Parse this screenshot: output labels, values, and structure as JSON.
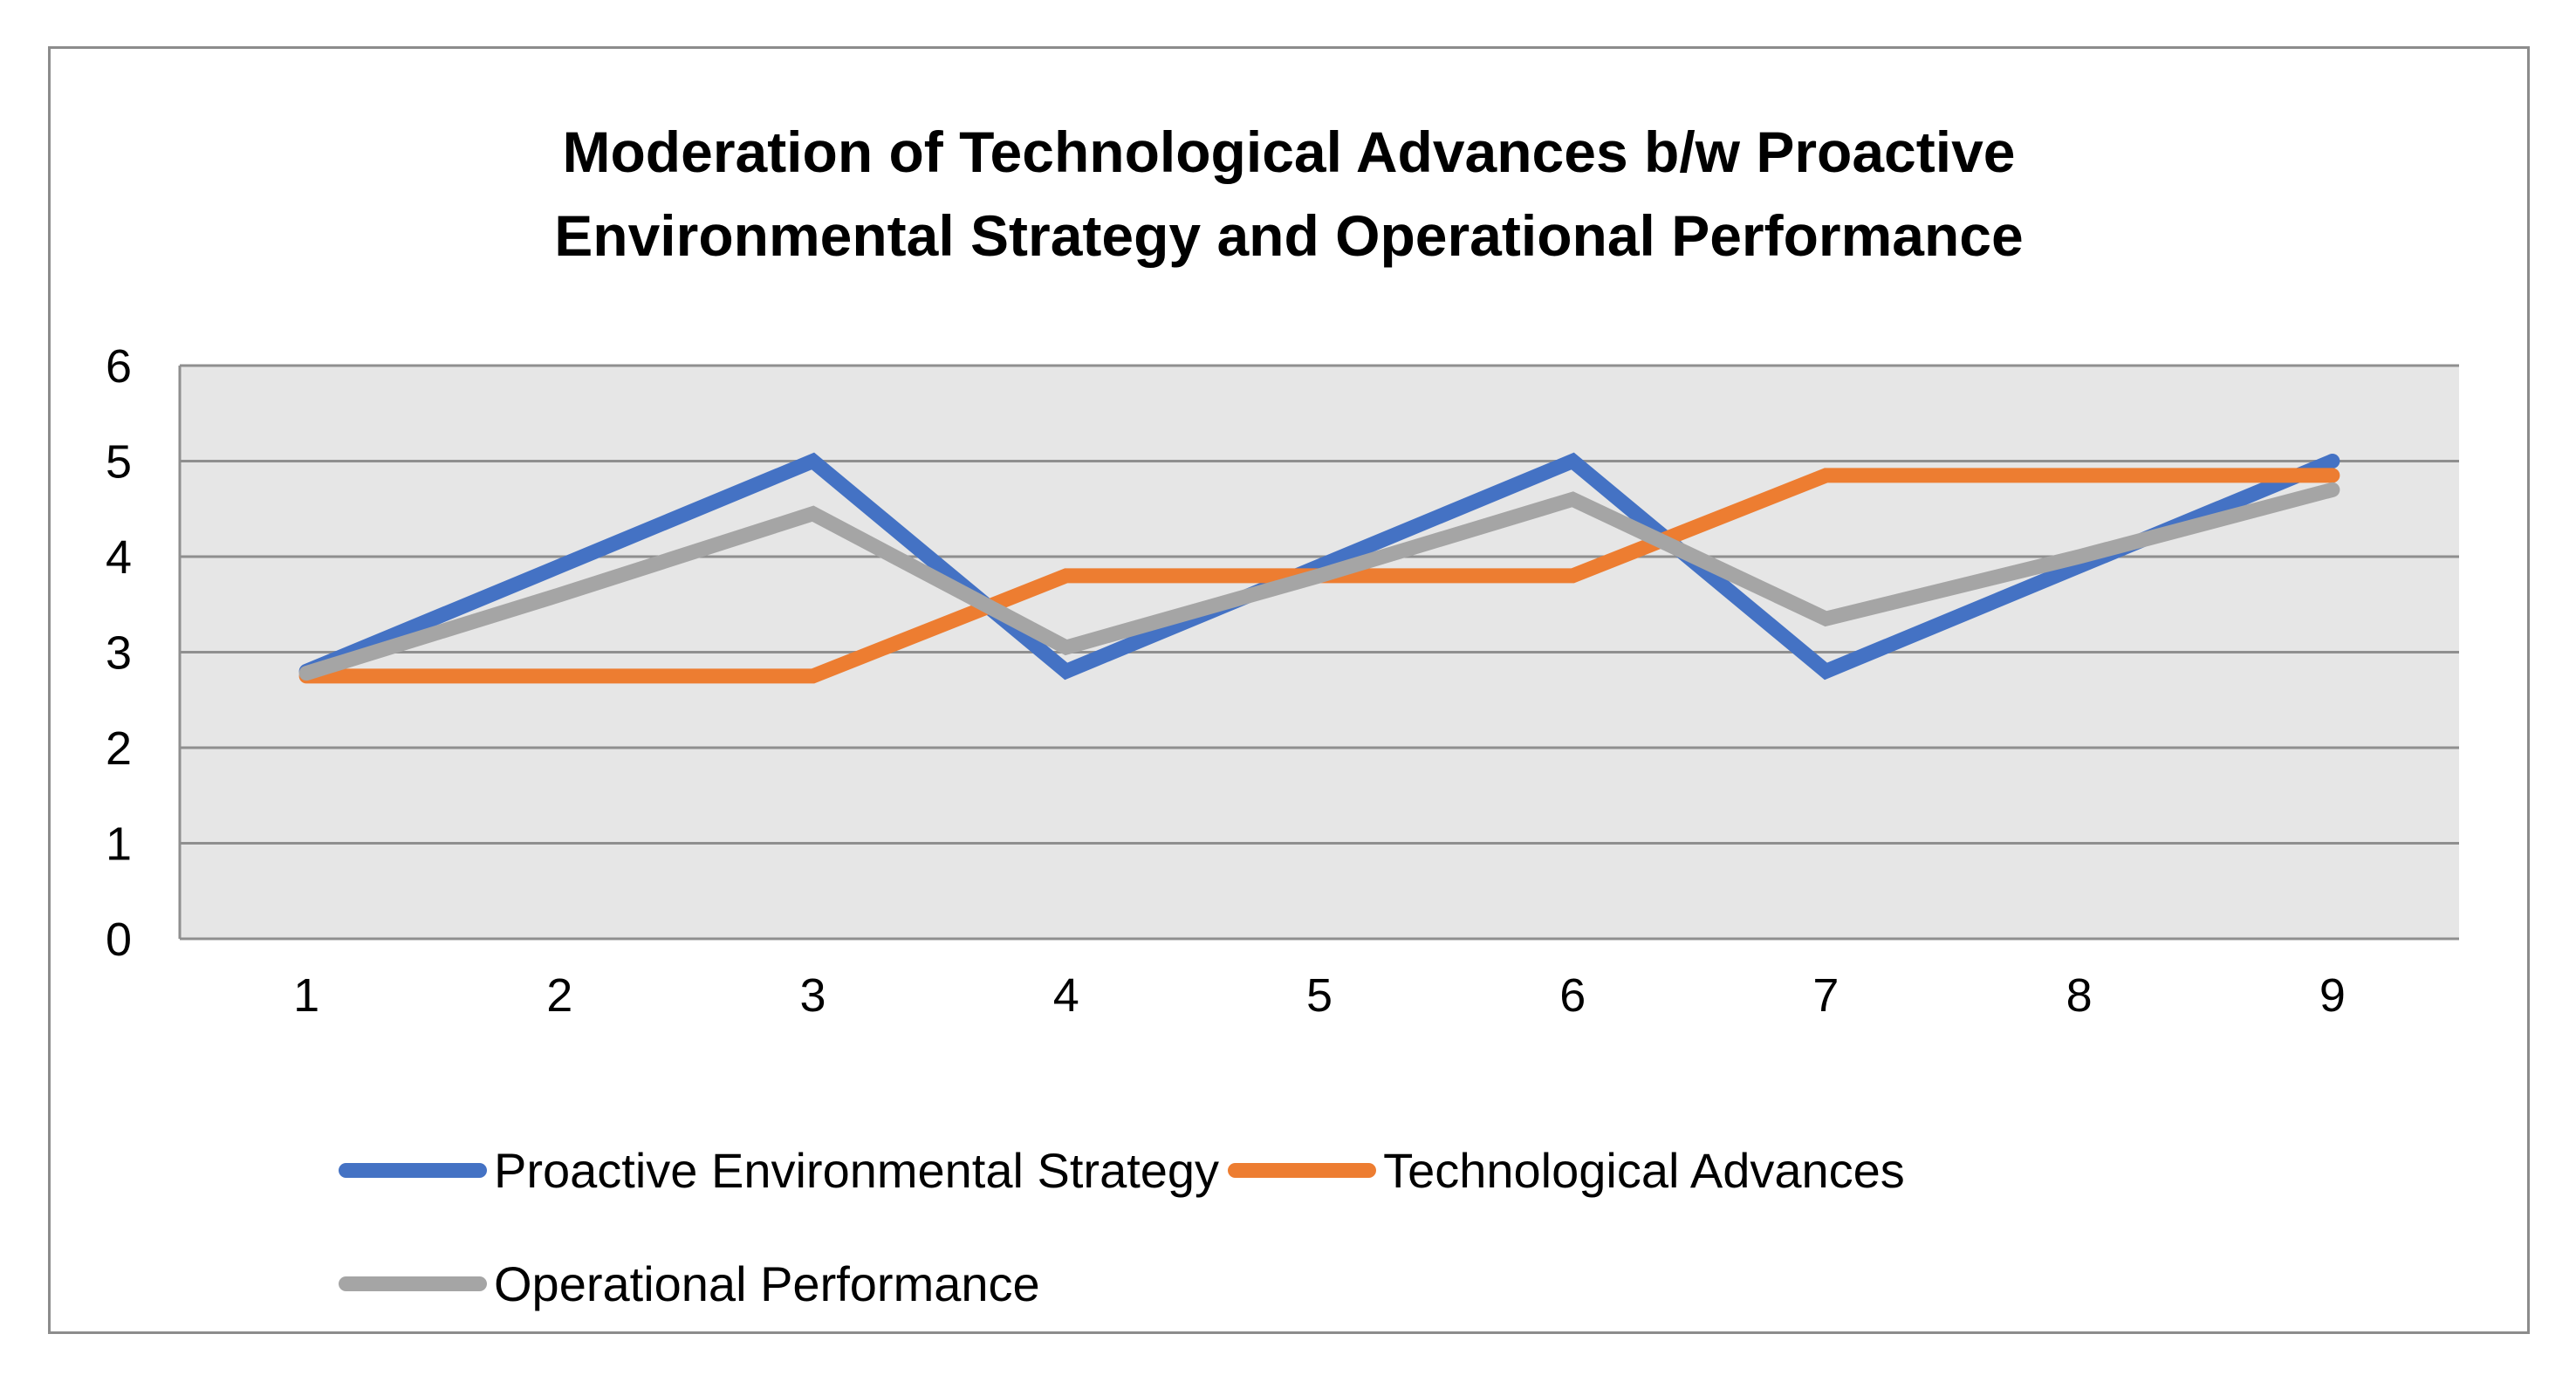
{
  "chart_data": {
    "type": "line",
    "title_lines": [
      "Moderation of Technological Advances b/w Proactive",
      "Environmental Strategy and Operational Performance"
    ],
    "categories": [
      "1",
      "2",
      "3",
      "4",
      "5",
      "6",
      "7",
      "8",
      "9"
    ],
    "yticks": [
      "0",
      "1",
      "2",
      "3",
      "4",
      "5",
      "6"
    ],
    "ylim": [
      0,
      6
    ],
    "grid": true,
    "legend_position": "bottom",
    "plot_background": "#e6e6e6",
    "series": [
      {
        "name": "Proactive Environmental Strategy",
        "color": "#4472c4",
        "values": [
          2.8,
          3.9,
          5.0,
          2.8,
          3.9,
          5.0,
          2.8,
          3.9,
          5.0
        ]
      },
      {
        "name": "Technological Advances",
        "color": "#ed7d31",
        "values": [
          2.75,
          2.75,
          2.75,
          3.8,
          3.8,
          3.8,
          4.85,
          4.85,
          4.85
        ]
      },
      {
        "name": "Operational Performance",
        "color": "#a5a5a5",
        "values": [
          2.78,
          3.6,
          4.45,
          3.05,
          3.8,
          4.6,
          3.35,
          4.0,
          4.7
        ]
      }
    ]
  }
}
